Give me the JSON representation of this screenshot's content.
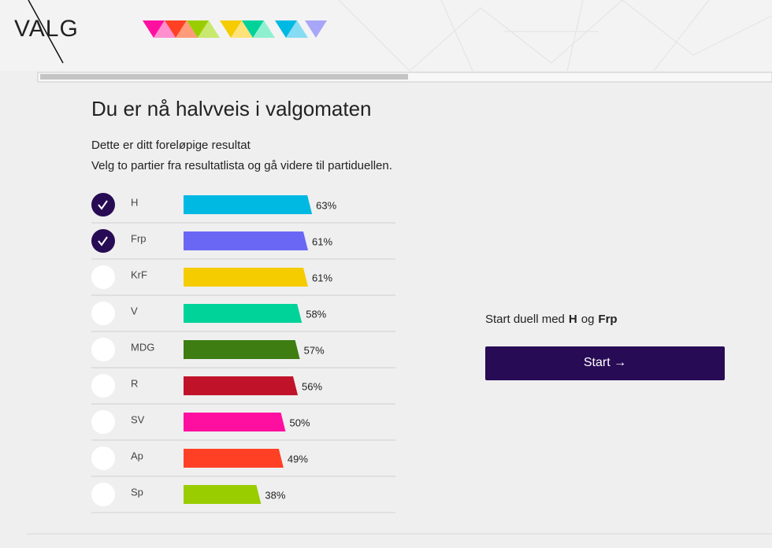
{
  "header": {
    "logo": "VALG"
  },
  "page": {
    "title": "Du er nå halvveis i valgomaten",
    "subtitle": "Dette er ditt foreløpige resultat",
    "instruction": "Velg to partier fra resultatlista og gå videre til partiduellen."
  },
  "results": [
    {
      "party": "H",
      "value": 63,
      "label": "63%",
      "color": "#00b9e3",
      "selected": true
    },
    {
      "party": "Frp",
      "value": 61,
      "label": "61%",
      "color": "#6b67f5",
      "selected": true
    },
    {
      "party": "KrF",
      "value": 61,
      "label": "61%",
      "color": "#f5cc00",
      "selected": false
    },
    {
      "party": "V",
      "value": 58,
      "label": "58%",
      "color": "#00d39a",
      "selected": false
    },
    {
      "party": "MDG",
      "value": 57,
      "label": "57%",
      "color": "#3e7d12",
      "selected": false
    },
    {
      "party": "R",
      "value": 56,
      "label": "56%",
      "color": "#c0132a",
      "selected": false
    },
    {
      "party": "SV",
      "value": 50,
      "label": "50%",
      "color": "#ff0fa0",
      "selected": false
    },
    {
      "party": "Ap",
      "value": 49,
      "label": "49%",
      "color": "#ff4025",
      "selected": false
    },
    {
      "party": "Sp",
      "value": 38,
      "label": "38%",
      "color": "#9acd00",
      "selected": false
    }
  ],
  "duel": {
    "prefix": "Start duell med",
    "first": "H",
    "joiner": "og",
    "second": "Frp",
    "button": "Start →"
  }
}
